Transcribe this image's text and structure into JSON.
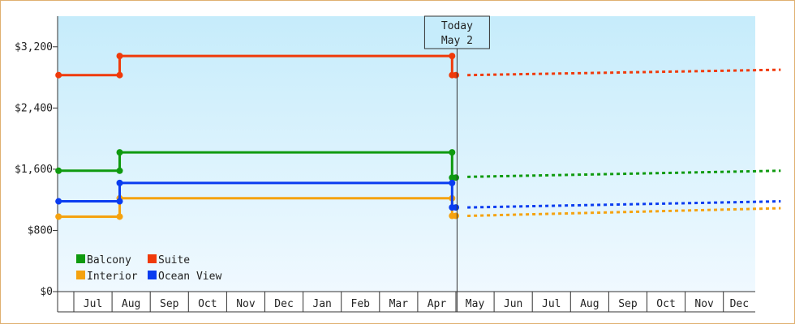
{
  "chart_data": {
    "type": "line",
    "title": "",
    "xlabel": "",
    "ylabel": "",
    "ylim": [
      0,
      3600
    ],
    "y_ticks": [
      0,
      800,
      1600,
      2400,
      3200
    ],
    "y_tick_labels": [
      "$0",
      "$800",
      "$1,600",
      "$2,400",
      "$3,200"
    ],
    "x_months": [
      "Jul",
      "Aug",
      "Sep",
      "Oct",
      "Nov",
      "Dec",
      "Jan",
      "Feb",
      "Mar",
      "Apr",
      "May",
      "Jun",
      "Jul",
      "Aug",
      "Sep",
      "Oct",
      "Nov",
      "Dec"
    ],
    "today_marker": {
      "line1": "Today",
      "line2": "May 2",
      "x_month_index": 10.03
    },
    "legend_position": "bottom-left",
    "grid": false,
    "colors": {
      "plot_bg_top": "#c6ecfb",
      "plot_bg_bottom": "#f0f9ff",
      "frame": "#e0b070"
    },
    "series": [
      {
        "name": "Balcony",
        "color": "#0f9a0f",
        "points": [
          [
            -0.4,
            1580
          ],
          [
            1.2,
            1580
          ],
          [
            1.2,
            1820
          ],
          [
            9.9,
            1820
          ],
          [
            9.9,
            1490
          ],
          [
            10.0,
            1490
          ]
        ],
        "forecast": [
          [
            10.3,
            1500
          ],
          [
            18.5,
            1580
          ]
        ]
      },
      {
        "name": "Suite",
        "color": "#f03a0a",
        "points": [
          [
            -0.4,
            2830
          ],
          [
            1.2,
            2830
          ],
          [
            1.2,
            3080
          ],
          [
            9.9,
            3080
          ],
          [
            9.9,
            2830
          ],
          [
            10.0,
            2830
          ]
        ],
        "forecast": [
          [
            10.3,
            2830
          ],
          [
            18.5,
            2900
          ]
        ]
      },
      {
        "name": "Interior",
        "color": "#f5a20f",
        "points": [
          [
            -0.4,
            980
          ],
          [
            1.2,
            980
          ],
          [
            1.2,
            1220
          ],
          [
            9.9,
            1220
          ],
          [
            9.9,
            990
          ],
          [
            10.0,
            990
          ]
        ],
        "forecast": [
          [
            10.3,
            990
          ],
          [
            18.5,
            1090
          ]
        ]
      },
      {
        "name": "Ocean View",
        "color": "#0a3cf0",
        "points": [
          [
            -0.4,
            1180
          ],
          [
            1.2,
            1180
          ],
          [
            1.2,
            1420
          ],
          [
            9.9,
            1420
          ],
          [
            9.9,
            1100
          ],
          [
            10.0,
            1100
          ]
        ],
        "forecast": [
          [
            10.3,
            1100
          ],
          [
            18.5,
            1180
          ]
        ]
      }
    ]
  }
}
